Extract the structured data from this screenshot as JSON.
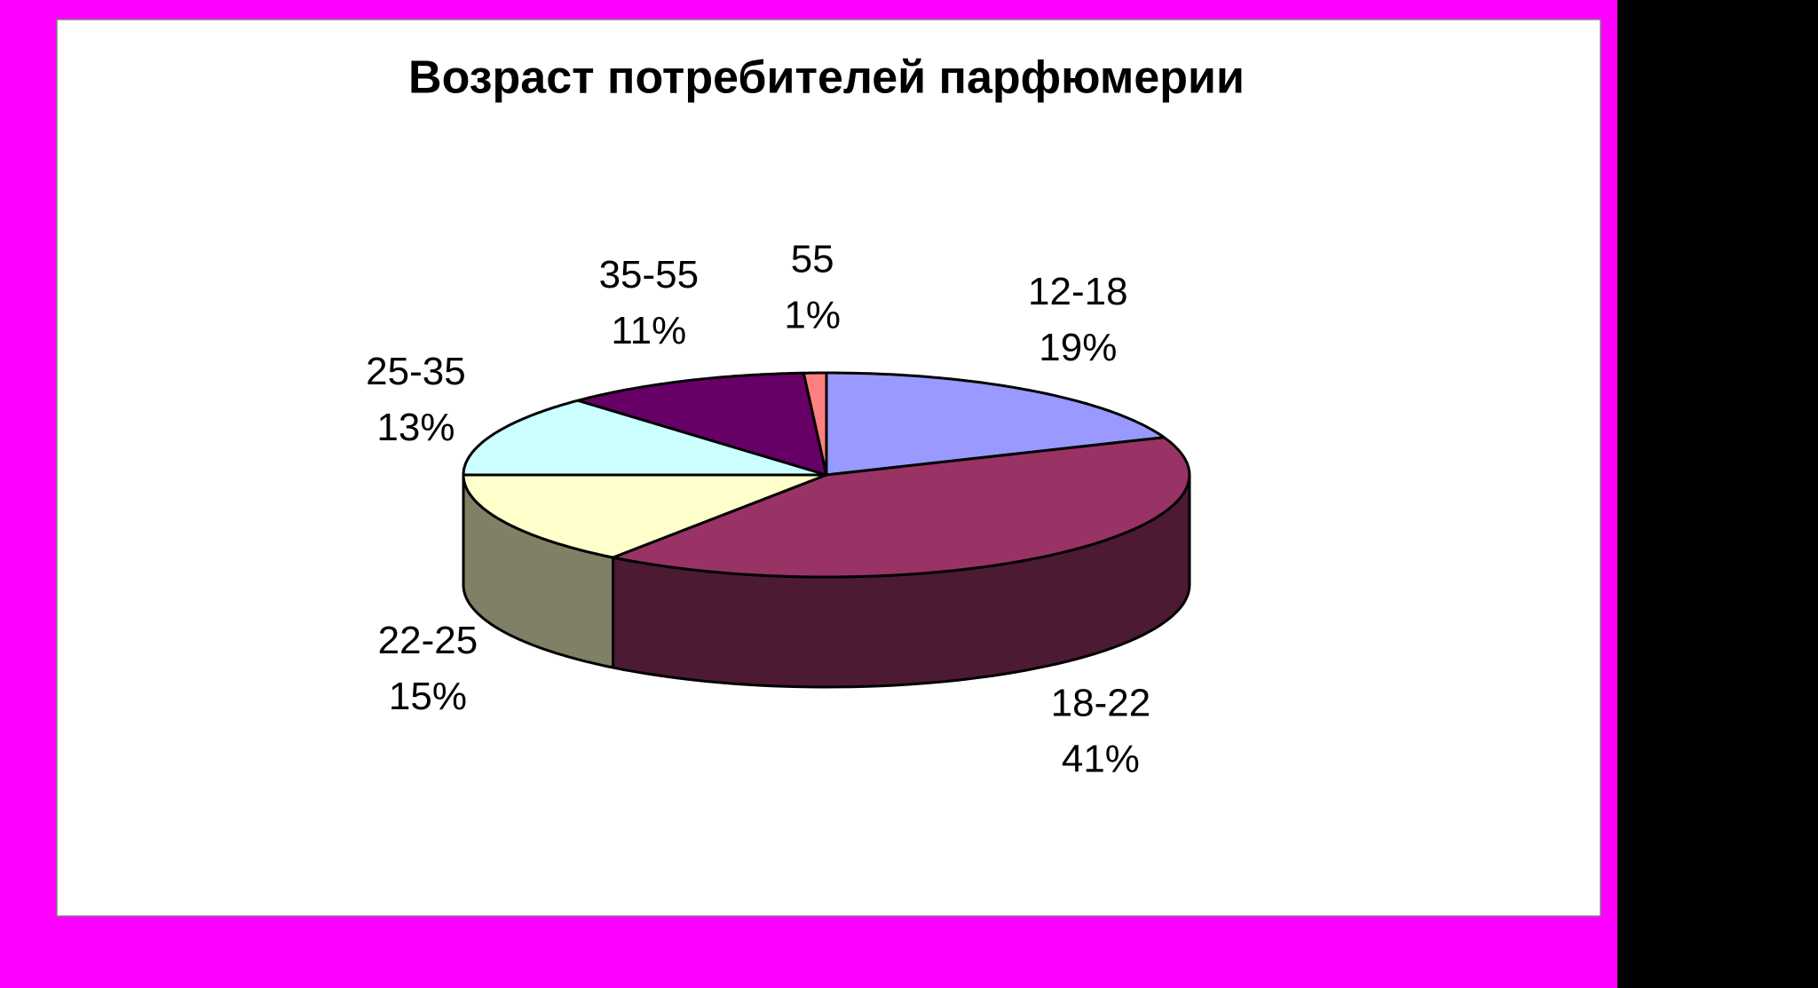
{
  "chart_data": {
    "type": "pie3d",
    "title": "Возраст потребителей парфюмерии",
    "categories": [
      "12-18",
      "18-22",
      "22-25",
      "25-35",
      "35-55",
      "55"
    ],
    "values": [
      19,
      41,
      15,
      13,
      11,
      1
    ],
    "value_labels": [
      "19%",
      "41%",
      "15%",
      "13%",
      "11%",
      "1%"
    ],
    "colors": [
      "#9999ff",
      "#993366",
      "#ffffcc",
      "#ccffff",
      "#660066",
      "#ff8080"
    ]
  }
}
